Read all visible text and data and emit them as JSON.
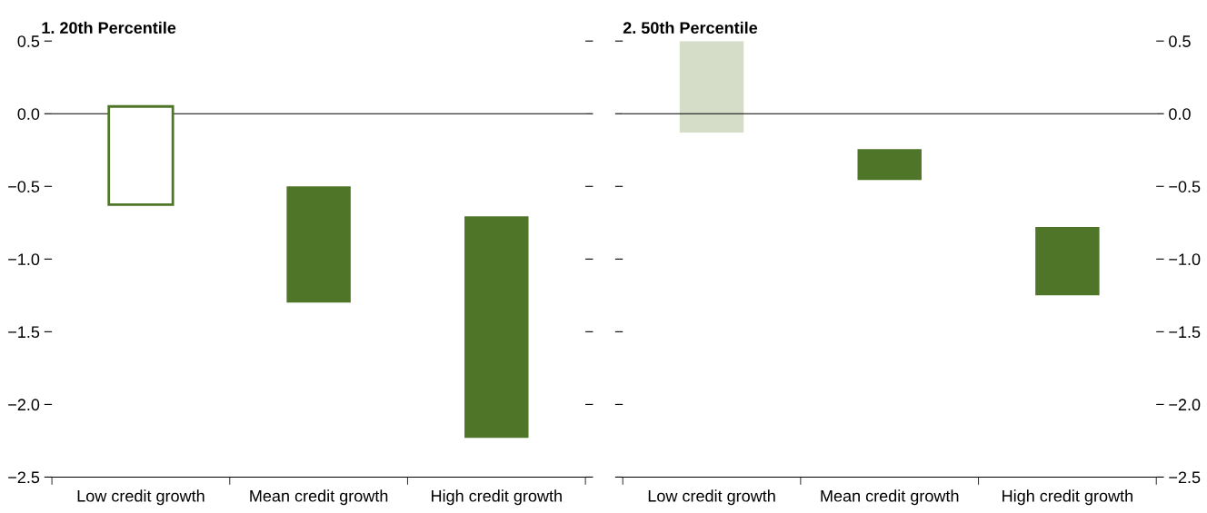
{
  "chart_data": [
    {
      "type": "bar",
      "title": "1. 20th Percentile",
      "categories": [
        "Low credit growth",
        "Mean credit growth",
        "High credit growth"
      ],
      "base": [
        -0.625,
        -1.3,
        -2.23
      ],
      "values": [
        0.675,
        0.8,
        1.524
      ],
      "colors": [
        "#ffffff",
        "#4f7529",
        "#4f7529"
      ],
      "ylim": [
        -2.5,
        0.5
      ],
      "yticks": [
        {
          "value": -2.5,
          "label": "−2.5"
        },
        {
          "value": -2.0,
          "label": "−2.0"
        },
        {
          "value": -1.5,
          "label": "−1.5"
        },
        {
          "value": -1.0,
          "label": "−1.0"
        },
        {
          "value": -0.5,
          "label": "−0.5"
        },
        {
          "value": 0.0,
          "label": "0.0"
        },
        {
          "value": 0.5,
          "label": "0.5"
        }
      ],
      "ref_lines": [
        {
          "axis": "y",
          "value": 0,
          "color": "#000000"
        }
      ],
      "grid": false
    },
    {
      "type": "bar",
      "title": "2. 50th Percentile",
      "categories": [
        "Low credit growth",
        "Mean credit growth",
        "High credit growth"
      ],
      "base": [
        -0.13,
        -0.456,
        -1.25
      ],
      "values": [
        0.63,
        0.212,
        0.47
      ],
      "colors": [
        "#d5ddc8",
        "#4f7529",
        "#4f7529"
      ],
      "ylim": [
        -2.5,
        0.5
      ],
      "yticks": [
        {
          "value": -2.5,
          "label": "−2.5"
        },
        {
          "value": -2.0,
          "label": "−2.0"
        },
        {
          "value": -1.5,
          "label": "−1.5"
        },
        {
          "value": -1.0,
          "label": "−1.0"
        },
        {
          "value": -0.5,
          "label": "−0.5"
        },
        {
          "value": 0.0,
          "label": "0.0"
        },
        {
          "value": 0.5,
          "label": "0.5"
        }
      ],
      "ref_lines": [
        {
          "axis": "y",
          "value": 0,
          "color": "#000000"
        }
      ],
      "grid": false
    }
  ]
}
